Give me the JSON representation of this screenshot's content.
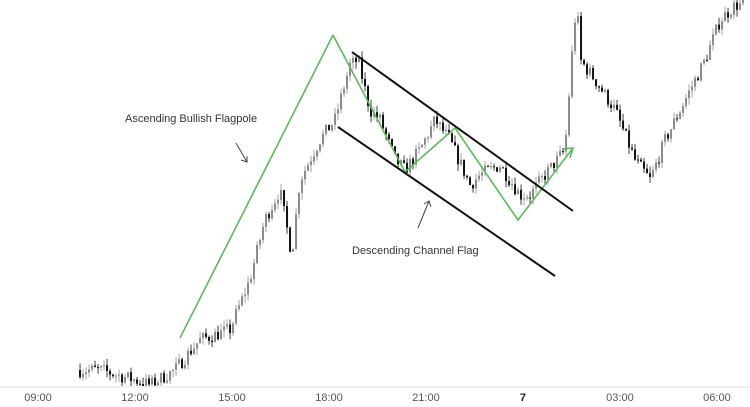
{
  "chart_data": {
    "type": "candlestick",
    "title": "",
    "xlabel": "",
    "ylabel": "",
    "x_ticks": [
      "09:00",
      "12:00",
      "15:00",
      "18:00",
      "21:00",
      "7",
      "03:00",
      "06:00"
    ],
    "bold_ticks": [
      "7"
    ],
    "grid": false,
    "colors": {
      "up": "#8a8a8a",
      "down": "#111111",
      "pattern": "#5cb85c",
      "channel": "#111111",
      "axis_text": "#555555"
    },
    "price_path": [
      [
        "10:18",
        37
      ],
      [
        "10:55",
        37
      ],
      [
        "12:00",
        27
      ],
      [
        "12:28",
        22
      ],
      [
        "13:14",
        37
      ],
      [
        "14:00",
        67
      ],
      [
        "14:56",
        77
      ],
      [
        "15:33",
        127
      ],
      [
        "16:01",
        187
      ],
      [
        "16:29",
        217
      ],
      [
        "16:51",
        152
      ],
      [
        "17:06",
        227
      ],
      [
        "17:43",
        267
      ],
      [
        "18:11",
        287
      ],
      [
        "18:39",
        342
      ],
      [
        "18:54",
        347
      ],
      [
        "19:16",
        297
      ],
      [
        "19:35",
        287
      ],
      [
        "20:03",
        247
      ],
      [
        "20:21",
        237
      ],
      [
        "20:49",
        257
      ],
      [
        "21:17",
        287
      ],
      [
        "21:44",
        267
      ],
      [
        "22:22",
        222
      ],
      [
        "22:40",
        232
      ],
      [
        "23:17",
        242
      ],
      [
        "23:55",
        212
      ],
      [
        "00:13",
        212
      ],
      [
        "00:41",
        232
      ],
      [
        "01:18",
        257
      ],
      [
        "01:33",
        367
      ],
      [
        "01:40",
        407
      ],
      [
        "01:46",
        347
      ],
      [
        "02:14",
        327
      ],
      [
        "02:51",
        297
      ],
      [
        "03:28",
        247
      ],
      [
        "03:56",
        227
      ],
      [
        "04:24",
        267
      ],
      [
        "05:01",
        307
      ],
      [
        "05:38",
        347
      ],
      [
        "06:06",
        387
      ],
      [
        "06:34",
        402
      ],
      [
        "06:52",
        402
      ]
    ],
    "annotations": [
      {
        "text": "Ascending Bullish Flagpole"
      },
      {
        "text": "Descending Channel Flag"
      }
    ]
  }
}
